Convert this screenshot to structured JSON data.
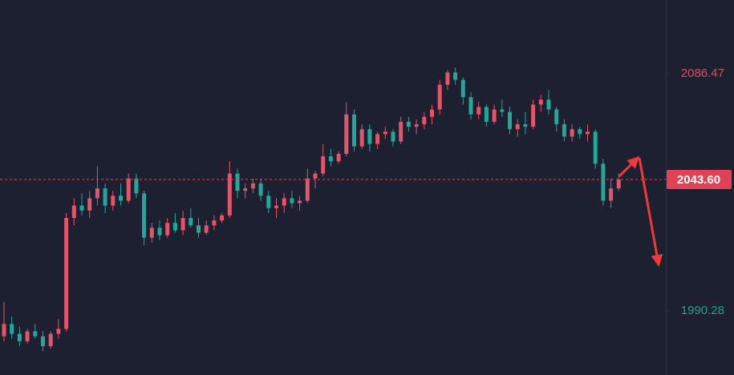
{
  "chart_data": {
    "type": "candlestick",
    "ylim": [
      1964.3,
      2116.4
    ],
    "yticks": [
      2086.47,
      1990.28
    ],
    "ytick_colors": [
      "#d9505e",
      "#22a088"
    ],
    "current_price": {
      "value": 2043.6,
      "label": "2043.60",
      "color": "#e04255"
    },
    "up_color": "#e0566a",
    "down_color": "#26a69a",
    "candles": [
      [
        1980,
        1994,
        1978,
        1985
      ],
      [
        1985,
        1988,
        1979,
        1981
      ],
      [
        1981,
        1984,
        1976,
        1978
      ],
      [
        1978,
        1983,
        1977,
        1982
      ],
      [
        1982,
        1985,
        1979,
        1980
      ],
      [
        1980,
        1982,
        1974,
        1976
      ],
      [
        1976,
        1982,
        1975,
        1981
      ],
      [
        1981,
        1987,
        1979,
        1983
      ],
      [
        1983,
        2030,
        1982,
        2028
      ],
      [
        2028,
        2036,
        2025,
        2033
      ],
      [
        2033,
        2038,
        2029,
        2031
      ],
      [
        2031,
        2039,
        2028,
        2036
      ],
      [
        2036,
        2049,
        2033,
        2040
      ],
      [
        2040,
        2042,
        2030,
        2033
      ],
      [
        2033,
        2039,
        2031,
        2037
      ],
      [
        2037,
        2042,
        2033,
        2035
      ],
      [
        2035,
        2046,
        2034,
        2044
      ],
      [
        2044,
        2046,
        2036,
        2038
      ],
      [
        2038,
        2039,
        2017,
        2020
      ],
      [
        2020,
        2026,
        2018,
        2024
      ],
      [
        2024,
        2027,
        2019,
        2021
      ],
      [
        2021,
        2028,
        2020,
        2026
      ],
      [
        2026,
        2030,
        2022,
        2023
      ],
      [
        2023,
        2031,
        2021,
        2028
      ],
      [
        2028,
        2032,
        2024,
        2025
      ],
      [
        2025,
        2028,
        2020,
        2022
      ],
      [
        2022,
        2027,
        2021,
        2025
      ],
      [
        2025,
        2029,
        2023,
        2027
      ],
      [
        2027,
        2030,
        2026,
        2029
      ],
      [
        2029,
        2051,
        2028,
        2046
      ],
      [
        2046,
        2048,
        2036,
        2039
      ],
      [
        2039,
        2042,
        2036,
        2040
      ],
      [
        2040,
        2044,
        2038,
        2042
      ],
      [
        2042,
        2044,
        2035,
        2037
      ],
      [
        2037,
        2039,
        2030,
        2032
      ],
      [
        2032,
        2036,
        2028,
        2033
      ],
      [
        2033,
        2038,
        2030,
        2036
      ],
      [
        2036,
        2039,
        2032,
        2034
      ],
      [
        2034,
        2037,
        2031,
        2035
      ],
      [
        2035,
        2048,
        2034,
        2044
      ],
      [
        2044,
        2047,
        2040,
        2046
      ],
      [
        2046,
        2058,
        2045,
        2053
      ],
      [
        2053,
        2056,
        2049,
        2051
      ],
      [
        2051,
        2055,
        2050,
        2054
      ],
      [
        2054,
        2075,
        2053,
        2070
      ],
      [
        2070,
        2072,
        2055,
        2057
      ],
      [
        2057,
        2066,
        2056,
        2064
      ],
      [
        2064,
        2066,
        2055,
        2058
      ],
      [
        2058,
        2063,
        2056,
        2062
      ],
      [
        2062,
        2065,
        2060,
        2063
      ],
      [
        2063,
        2064,
        2057,
        2059
      ],
      [
        2059,
        2069,
        2058,
        2067
      ],
      [
        2067,
        2069,
        2063,
        2065
      ],
      [
        2065,
        2068,
        2062,
        2066
      ],
      [
        2066,
        2071,
        2064,
        2069
      ],
      [
        2069,
        2074,
        2066,
        2072
      ],
      [
        2072,
        2084,
        2070,
        2082
      ],
      [
        2082,
        2088,
        2080,
        2087
      ],
      [
        2087,
        2089,
        2082,
        2084
      ],
      [
        2084,
        2085,
        2074,
        2077
      ],
      [
        2077,
        2079,
        2068,
        2070
      ],
      [
        2070,
        2075,
        2068,
        2073
      ],
      [
        2073,
        2074,
        2065,
        2067
      ],
      [
        2067,
        2074,
        2066,
        2072
      ],
      [
        2072,
        2076,
        2069,
        2071
      ],
      [
        2071,
        2073,
        2062,
        2064
      ],
      [
        2064,
        2068,
        2061,
        2066
      ],
      [
        2066,
        2071,
        2062,
        2065
      ],
      [
        2065,
        2076,
        2064,
        2074
      ],
      [
        2074,
        2078,
        2071,
        2076
      ],
      [
        2076,
        2080,
        2070,
        2072
      ],
      [
        2072,
        2073,
        2063,
        2066
      ],
      [
        2066,
        2068,
        2059,
        2061
      ],
      [
        2061,
        2066,
        2059,
        2064
      ],
      [
        2064,
        2065,
        2060,
        2062
      ],
      [
        2062,
        2066,
        2059,
        2063
      ],
      [
        2063,
        2064,
        2048,
        2050
      ],
      [
        2050,
        2052,
        2033,
        2035
      ],
      [
        2035,
        2044,
        2032,
        2040
      ],
      [
        2040,
        2046,
        2039,
        2043.6
      ]
    ]
  }
}
